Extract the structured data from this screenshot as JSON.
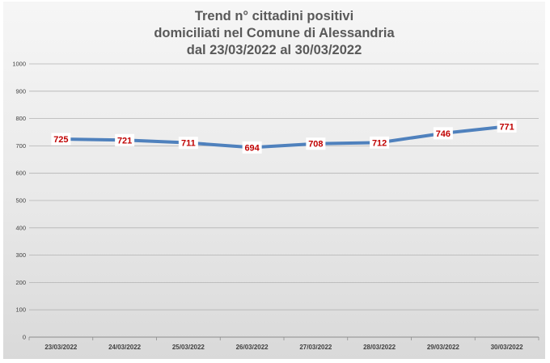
{
  "chart_data": {
    "type": "line",
    "title_lines": [
      "Trend n° cittadini positivi",
      "domiciliati nel Comune di Alessandria",
      "dal 23/03/2022 al 30/03/2022"
    ],
    "categories": [
      "23/03/2022",
      "24/03/2022",
      "25/03/2022",
      "26/03/2022",
      "27/03/2022",
      "28/03/2022",
      "29/03/2022",
      "30/03/2022"
    ],
    "series": [
      {
        "values": [
          725,
          721,
          711,
          694,
          708,
          712,
          746,
          771
        ],
        "color": "#4f81bd"
      }
    ],
    "ylim": [
      0,
      1000
    ],
    "yticks": [
      0,
      100,
      200,
      300,
      400,
      500,
      600,
      700,
      800,
      900,
      1000
    ],
    "data_labels": true,
    "data_label_color": "#c00000",
    "grid": true,
    "legend": "none"
  }
}
